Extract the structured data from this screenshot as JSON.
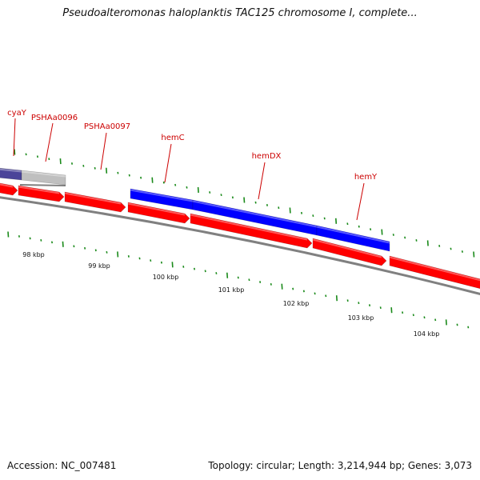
{
  "title": "Pseudoalteromonas haloplanktis TAC125 chromosome I, complete...",
  "footer": {
    "accession": "Accession: NC_007481",
    "summary": "Topology: circular; Length: 3,214,944 bp; Genes: 3,073"
  },
  "colors": {
    "forward_gene": "#ff0000",
    "reverse_gene": "#0000ff",
    "rna_gene": "#4b4499",
    "other_feature": "#bfbfbf",
    "label_text": "#cc0000",
    "tick": "#1a8a1a",
    "backbone": "#808080"
  },
  "gene_labels": [
    {
      "id": "cyaY",
      "text": "cyaY"
    },
    {
      "id": "pshaa0096",
      "text": "PSHAa0096"
    },
    {
      "id": "pshaa0097",
      "text": "PSHAa0097"
    },
    {
      "id": "hemc",
      "text": "hemC"
    },
    {
      "id": "hemdx",
      "text": "hemDX"
    },
    {
      "id": "hemy",
      "text": "hemY"
    }
  ],
  "kbp_labels": [
    "98 kbp",
    "99 kbp",
    "100 kbp",
    "101 kbp",
    "102 kbp",
    "103 kbp",
    "104 kbp"
  ]
}
